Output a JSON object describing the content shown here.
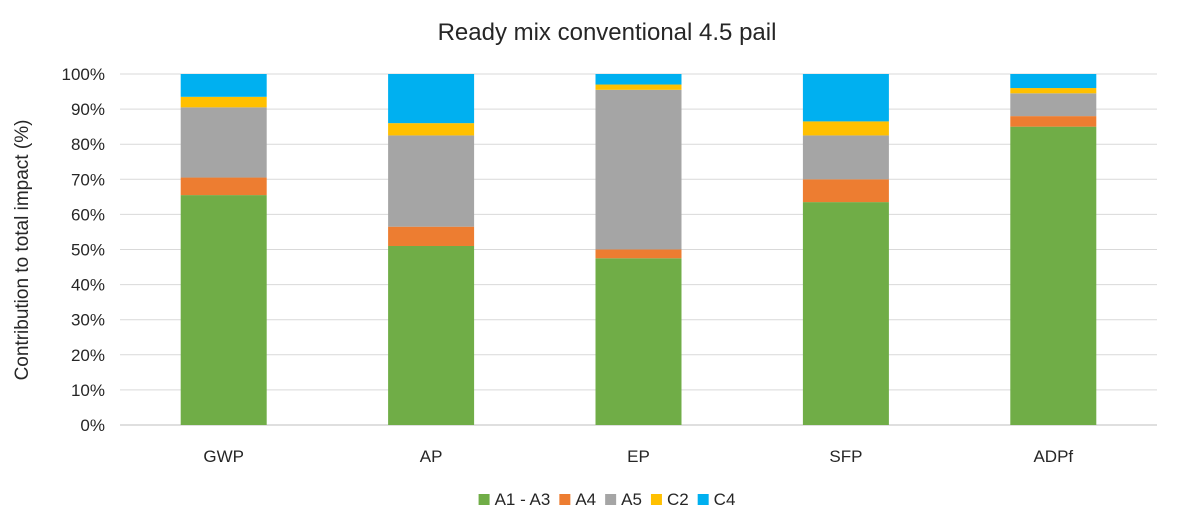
{
  "chart_data": {
    "type": "bar",
    "stacked": true,
    "title": "Ready mix conventional 4.5 pail",
    "xlabel": "",
    "ylabel": "Contribution to total impact (%)",
    "ylim": [
      0,
      100
    ],
    "yticks": [
      0,
      10,
      20,
      30,
      40,
      50,
      60,
      70,
      80,
      90,
      100
    ],
    "ytick_suffix": "%",
    "grid": true,
    "legend_position": "bottom",
    "categories": [
      "GWP",
      "AP",
      "EP",
      "SFP",
      "ADPf"
    ],
    "series": [
      {
        "name": "A1 - A3",
        "color": "#70ad47",
        "values": [
          65.5,
          51.0,
          47.5,
          63.5,
          85.0
        ]
      },
      {
        "name": "A4",
        "color": "#ed7d31",
        "values": [
          5.0,
          5.5,
          2.5,
          6.5,
          3.0
        ]
      },
      {
        "name": "A5",
        "color": "#a5a5a5",
        "values": [
          20.0,
          26.0,
          45.5,
          12.5,
          6.5
        ]
      },
      {
        "name": "C2",
        "color": "#ffc000",
        "values": [
          3.0,
          3.5,
          1.5,
          4.0,
          1.5
        ]
      },
      {
        "name": "C4",
        "color": "#00b0f0",
        "values": [
          6.5,
          14.0,
          3.0,
          13.5,
          4.0
        ]
      }
    ]
  }
}
